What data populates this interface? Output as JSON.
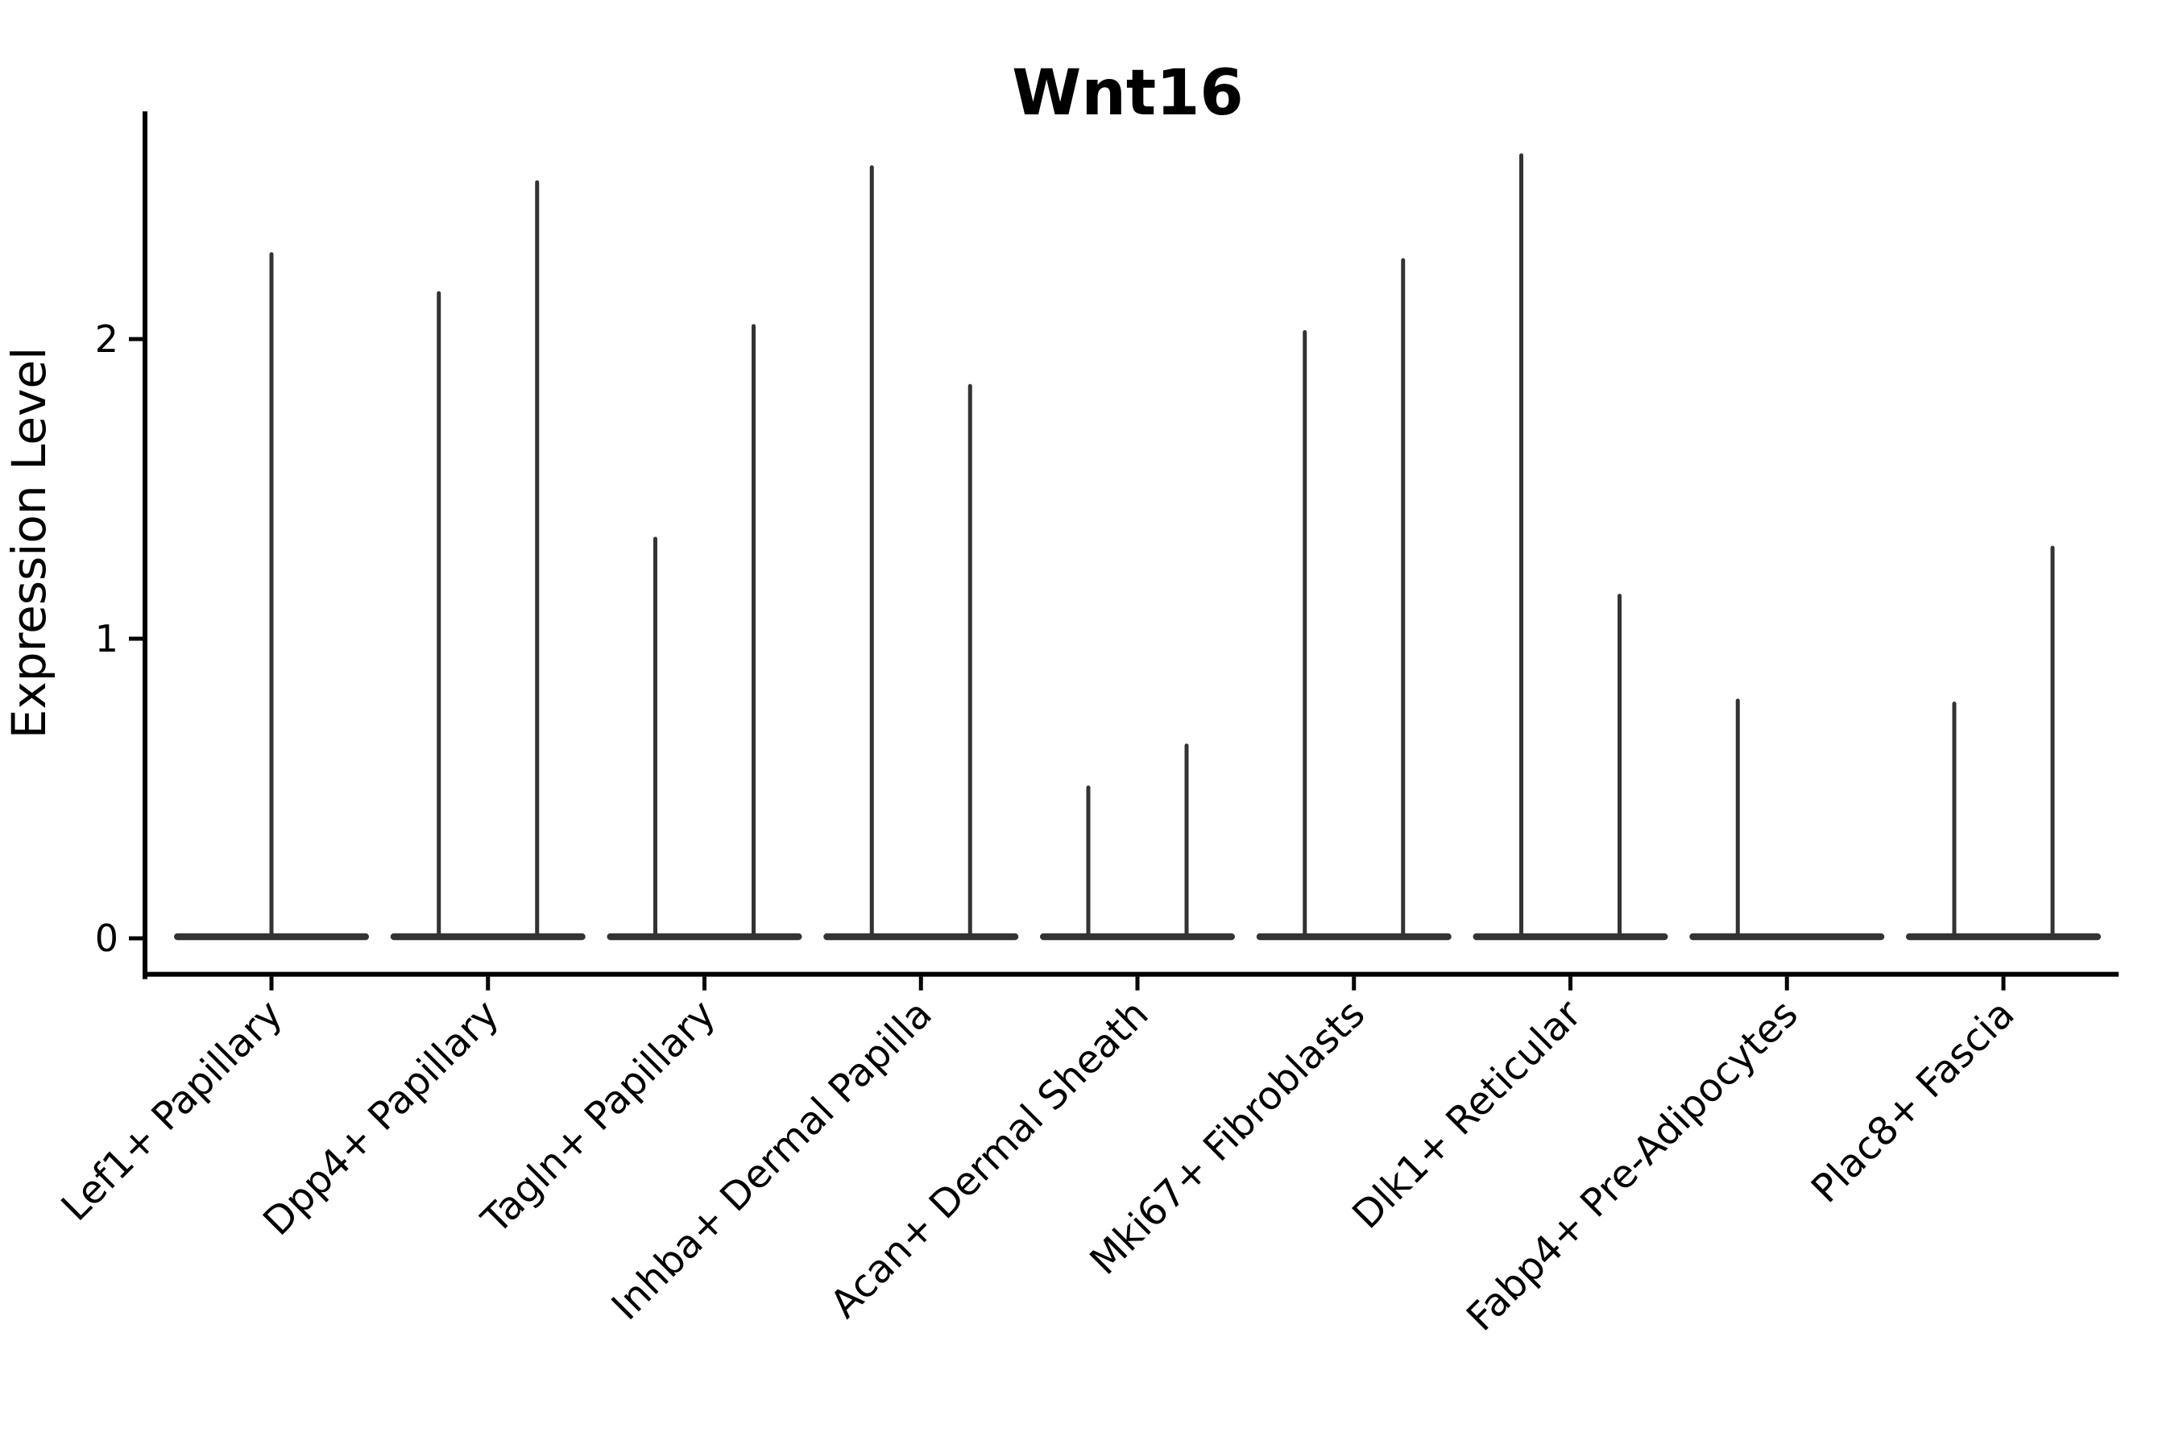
{
  "chart_data": {
    "type": "violin",
    "title": "Wnt16",
    "xlabel": "",
    "ylabel": "Expression Level",
    "yticks": [
      0,
      1,
      2
    ],
    "ylim": [
      -0.12,
      2.76
    ],
    "grid": false,
    "legend": null,
    "categories": [
      "Lef1+ Papillary",
      "Dpp4+ Papillary",
      "Tagln+ Papillary",
      "Inhba+ Dermal Papilla",
      "Acan+ Dermal Sheath",
      "Mki67+ Fibroblasts",
      "Dlk1+ Reticular",
      "Fabp4+ Pre-Adipocytes",
      "Plac8+ Fascia"
    ],
    "baseline_value": 0,
    "violins": [
      {
        "category": "Lef1+ Papillary",
        "spikes": [
          {
            "slot": "center",
            "max_expression": 2.29
          }
        ]
      },
      {
        "category": "Dpp4+ Papillary",
        "spikes": [
          {
            "slot": "left",
            "max_expression": 2.16
          },
          {
            "slot": "right",
            "max_expression": 2.53
          }
        ]
      },
      {
        "category": "Tagln+ Papillary",
        "spikes": [
          {
            "slot": "left",
            "max_expression": 1.34
          },
          {
            "slot": "right",
            "max_expression": 2.05
          }
        ]
      },
      {
        "category": "Inhba+ Dermal Papilla",
        "spikes": [
          {
            "slot": "left",
            "max_expression": 2.58
          },
          {
            "slot": "right",
            "max_expression": 1.85
          }
        ]
      },
      {
        "category": "Acan+ Dermal Sheath",
        "spikes": [
          {
            "slot": "left",
            "max_expression": 0.51
          },
          {
            "slot": "right",
            "max_expression": 0.65
          }
        ]
      },
      {
        "category": "Mki67+ Fibroblasts",
        "spikes": [
          {
            "slot": "left",
            "max_expression": 2.03
          },
          {
            "slot": "right",
            "max_expression": 2.27
          }
        ]
      },
      {
        "category": "Dlk1+ Reticular",
        "spikes": [
          {
            "slot": "left",
            "max_expression": 2.62
          },
          {
            "slot": "right",
            "max_expression": 1.15
          }
        ]
      },
      {
        "category": "Fabp4+ Pre-Adipocytes",
        "spikes": [
          {
            "slot": "left",
            "max_expression": 0.8
          }
        ]
      },
      {
        "category": "Plac8+ Fascia",
        "spikes": [
          {
            "slot": "left",
            "max_expression": 0.79
          },
          {
            "slot": "right",
            "max_expression": 1.31
          }
        ]
      }
    ],
    "colors": {
      "violin": "#333333",
      "axis": "#000000",
      "text": "#000000"
    }
  }
}
